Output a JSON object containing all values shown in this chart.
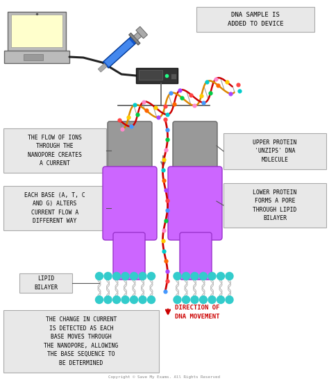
{
  "bg_color": "#ffffff",
  "labels": {
    "dna_sample": "DNA SAMPLE IS\nADDED TO DEVICE",
    "flow_ions": "THE FLOW OF IONS\nTHROUGH THE\nNANOPORE CREATES\nA CURRENT",
    "each_base": "EACH BASE (A, T, C\nAND G) ALTERS\nCURRENT FLOW A\nDIFFERENT WAY",
    "lipid_bilayer": "LIPID\nBILAYER",
    "change_current": "THE CHANGE IN CURRENT\nIS DETECTED AS EACH\nBASE MOVES THROUGH\nTHE NANOPORE, ALLOWING\nTHE BASE SEQUENCE TO\nBE DETERMINED",
    "upper_protein": "UPPER PROTEIN\n'UNZIPS' DNA\nMOLECULE",
    "lower_protein": "LOWER PROTEIN\nFORMS A PORE\nTHROUGH LIPID\nBILAYER",
    "direction": "DIRECTION OF\nDNA MOVEMENT",
    "copyright": "Copyright © Save My Exams. All Rights Reserved"
  },
  "colors": {
    "label_box_bg": "#e8e8e8",
    "label_box_edge": "#aaaaaa",
    "protein_upper": "#999999",
    "protein_lower": "#cc66ff",
    "lipid_circle": "#33cccc",
    "lipid_tail": "#cccccc",
    "dna_strand1": "#cc0000",
    "dna_strand2": "#dd8800",
    "direction_arrow": "#cc0000",
    "laptop_body": "#aaaaaa",
    "laptop_screen_bg": "#ffffcc",
    "syringe_body": "#0055cc",
    "cable": "#222222",
    "device_box": "#333333",
    "connector": "#555555",
    "dots": [
      "#ff4444",
      "#4499ff",
      "#00cc44",
      "#ff88cc",
      "#ffcc00",
      "#00cccc",
      "#ff6600",
      "#aa44ff"
    ]
  }
}
